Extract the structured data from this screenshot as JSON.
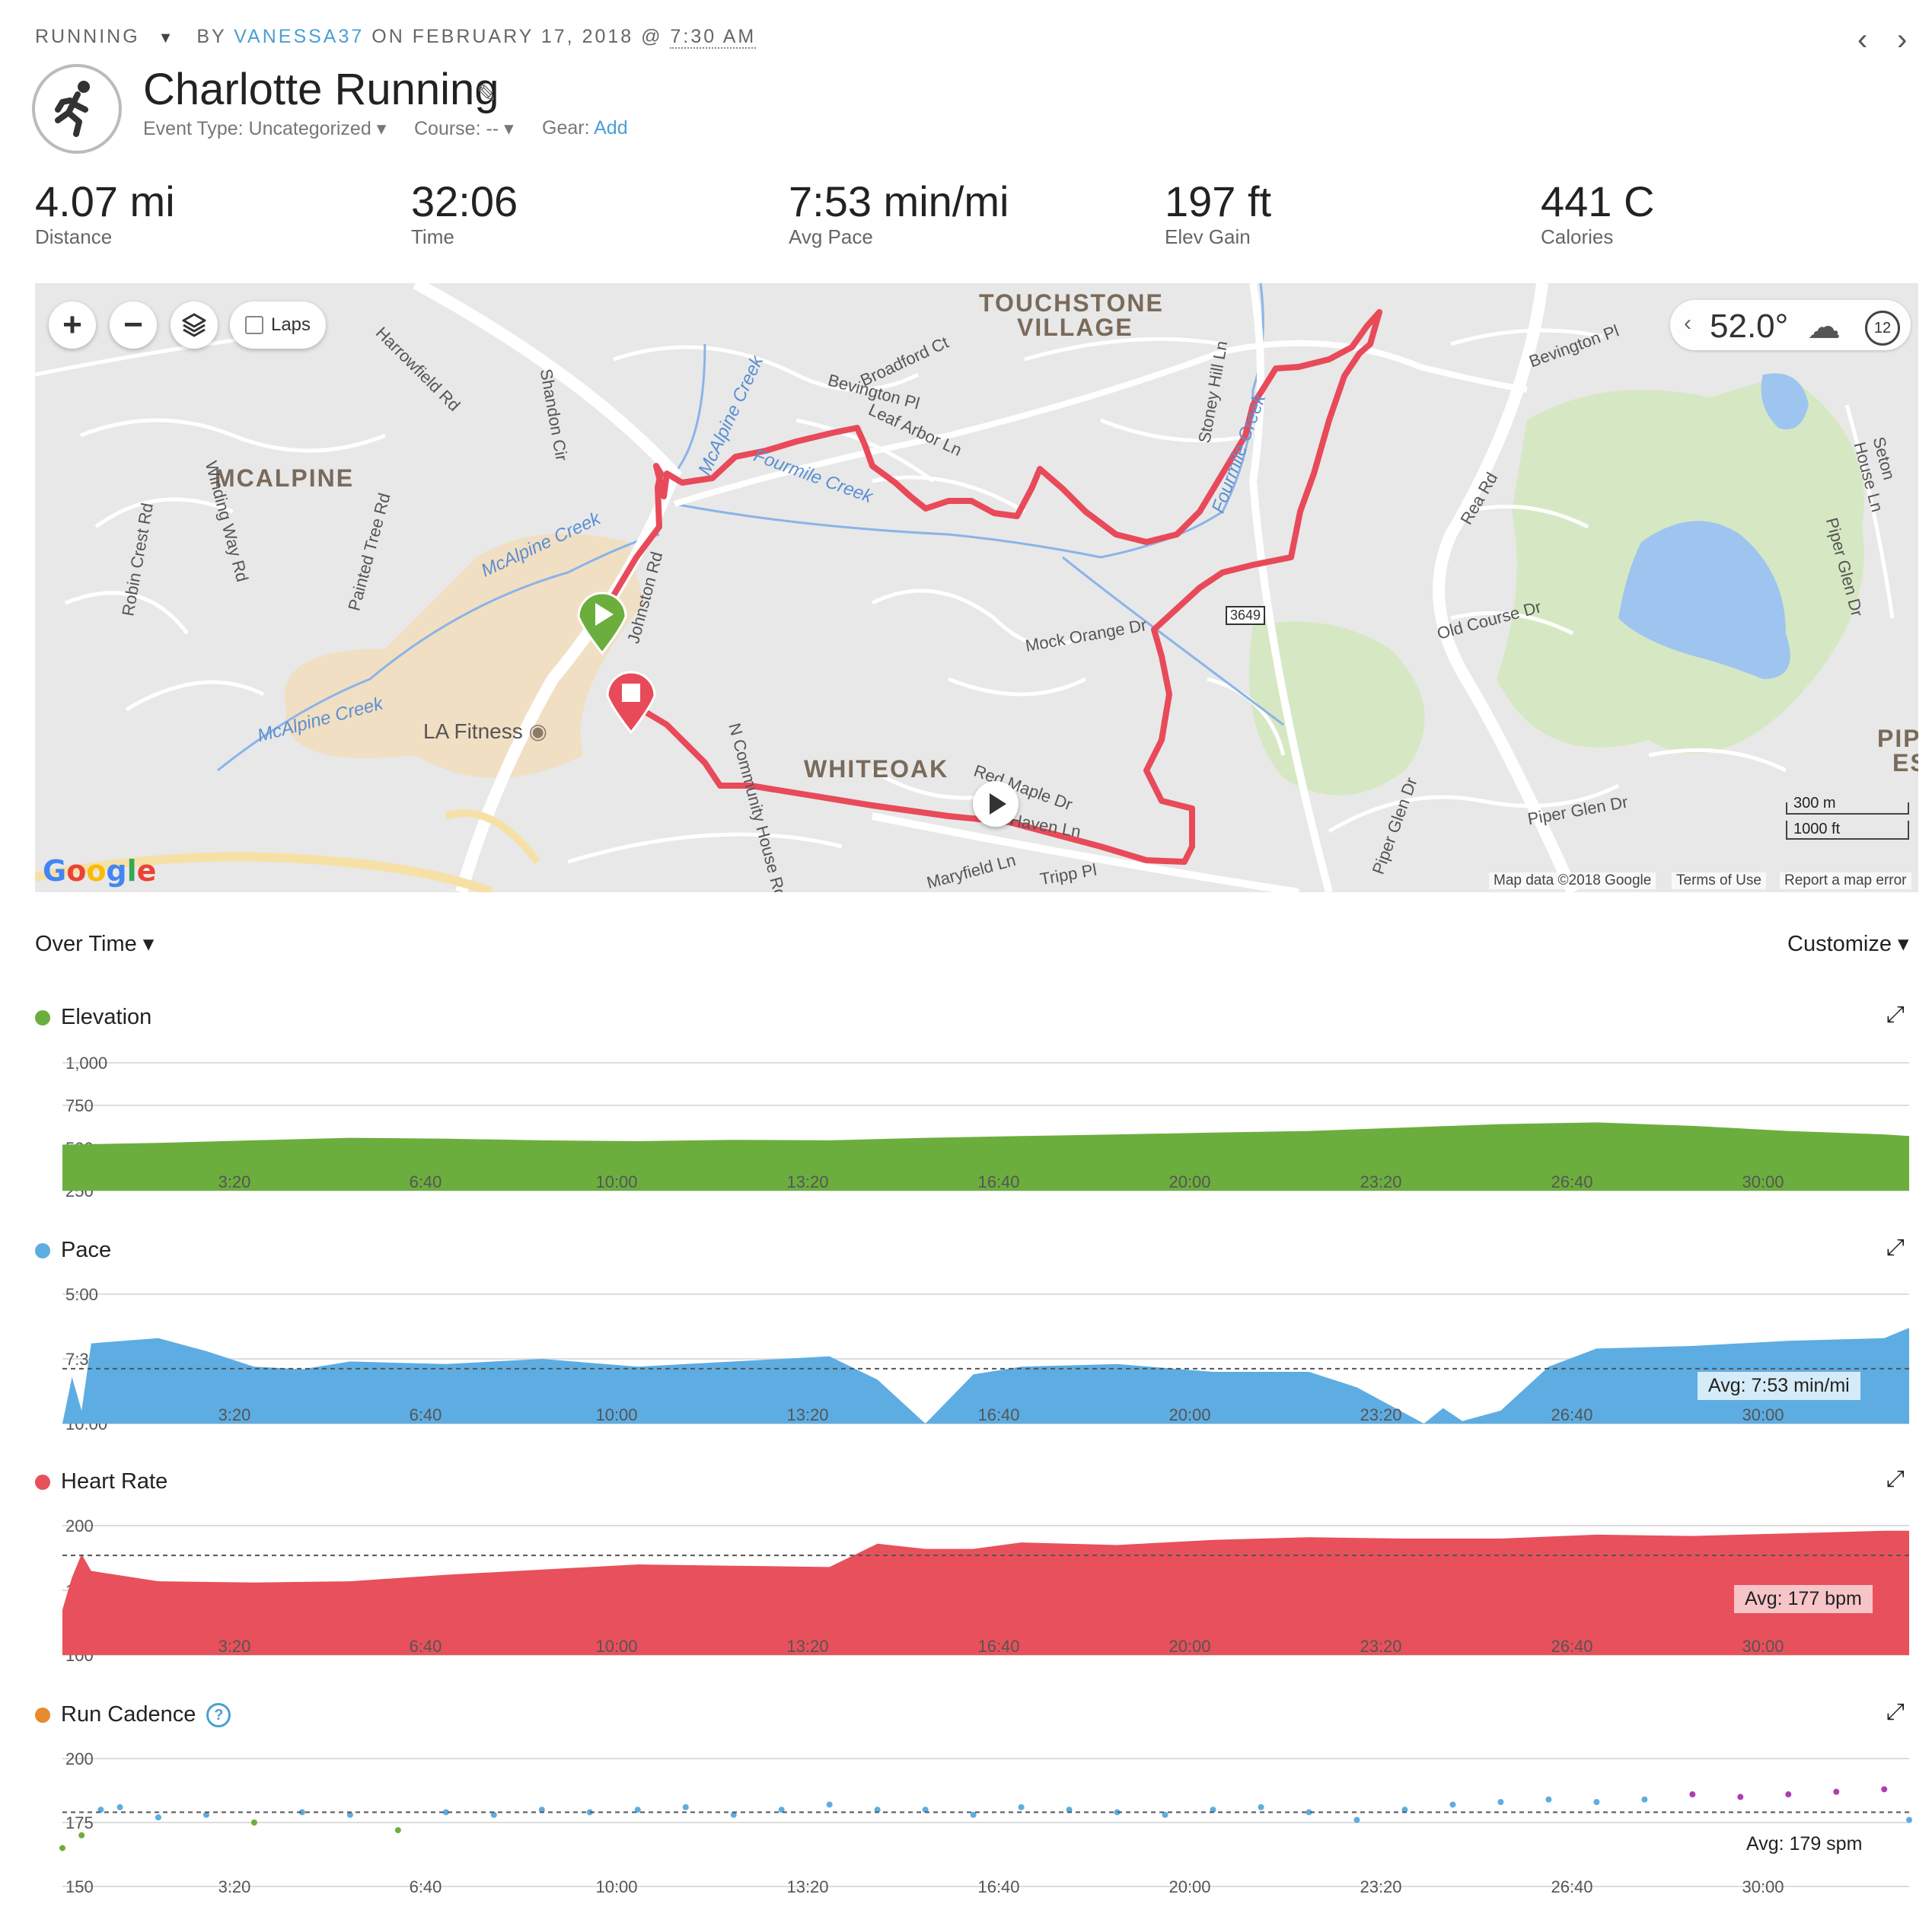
{
  "header": {
    "activity_type": "RUNNING",
    "by_label": "BY",
    "username": "VANESSA37",
    "on_label": "ON FEBRUARY 17, 2018 @",
    "time": "7:30 AM",
    "title": "Charlotte Running",
    "event_type_label": "Event Type:",
    "event_type_value": "Uncategorized",
    "course_label": "Course:",
    "course_value": "--",
    "gear_label": "Gear:",
    "gear_link": "Add",
    "prev_icon": "chevron-left-icon",
    "next_icon": "chevron-right-icon",
    "activity_icon": "runner-icon"
  },
  "stats": [
    {
      "value": "4.07 mi",
      "label": "Distance"
    },
    {
      "value": "32:06",
      "label": "Time"
    },
    {
      "value": "7:53 min/mi",
      "label": "Avg Pace"
    },
    {
      "value": "197 ft",
      "label": "Elev Gain"
    },
    {
      "value": "441 C",
      "label": "Calories"
    }
  ],
  "map": {
    "zoom_in": "+",
    "zoom_out": "−",
    "laps_label": "Laps",
    "temperature": "52.0°",
    "wind": "12",
    "weather_icon": "cloud-icon",
    "scale_m": "300 m",
    "scale_ft": "1000 ft",
    "attribution": "Map data ©2018 Google",
    "terms": "Terms of Use",
    "report": "Report a map error",
    "google": "Google",
    "route_color": "#e84a5a",
    "labels": {
      "touchstone1": "TOUCHSTONE",
      "touchstone2": "VILLAGE",
      "mcalpine": "MCALPINE",
      "whiteoak": "WHITEOAK",
      "la_fitness": "LA Fitness",
      "harrowfield": "Harrowfield Rd",
      "shandon": "Shandon Cir",
      "winding": "Winding Way Rd",
      "robin": "Robin Crest Rd",
      "painted": "Painted Tree Rd",
      "mcalpine_creek1": "McAlpine Creek",
      "mcalpine_creek2": "McAlpine Creek",
      "mcalpine_creek3": "McAlpine Creek",
      "fourmile1": "Fourmile Creek",
      "fourmile2": "Fourmile Creek",
      "johnston": "Johnston Rd",
      "broadford": "Broadford Ct",
      "bevington": "Bevington Pl",
      "bevington2": "Bevington Pl",
      "leaf": "Leaf Arbor Ln",
      "stoney": "Stoney Hill Ln",
      "mock": "Mock Orange Dr",
      "rea": "Rea Rd",
      "oldcourse": "Old Course Dr",
      "piper": "Piper Glen Dr",
      "piper2": "Piper Glen Dr",
      "piper3": "Piper Glen Dr",
      "seton": "Seton House Ln",
      "community": "N Community House Rd",
      "redmaple": "Red Maple Dr",
      "haven": "Haven Ln",
      "maryfield": "Maryfield Ln",
      "tripp": "Tripp Pl",
      "route3649": "3649",
      "pip": "PIP",
      "es": "ES"
    }
  },
  "over_time": {
    "label": "Over Time",
    "customize": "Customize"
  },
  "x_ticks": [
    "3:20",
    "6:40",
    "10:00",
    "13:20",
    "16:40",
    "20:00",
    "23:20",
    "26:40",
    "30:00"
  ],
  "chart_data": [
    {
      "type": "area",
      "title": "Elevation",
      "color": "#6cae3e",
      "yticks": [
        "1,000",
        "750",
        "500",
        "250"
      ],
      "ylim": [
        250,
        1000
      ],
      "x": [
        0,
        100,
        200,
        300,
        400,
        500,
        600,
        700,
        800,
        900,
        1000,
        1100,
        1200,
        1300,
        1400,
        1500,
        1600,
        1700,
        1800,
        1900,
        1926
      ],
      "values": [
        520,
        530,
        545,
        560,
        555,
        545,
        540,
        548,
        545,
        560,
        570,
        580,
        590,
        600,
        620,
        640,
        650,
        630,
        600,
        580,
        570
      ]
    },
    {
      "type": "area",
      "title": "Pace",
      "color": "#5dade2",
      "yticks": [
        "5:00",
        "7:30",
        "10:00"
      ],
      "ylim_min_per_mi": [
        5,
        10
      ],
      "avg_label": "Avg: 7:53 min/mi",
      "x": [
        0,
        10,
        20,
        30,
        100,
        150,
        200,
        250,
        300,
        400,
        500,
        600,
        700,
        800,
        850,
        900,
        950,
        1000,
        1100,
        1200,
        1300,
        1350,
        1400,
        1420,
        1440,
        1460,
        1500,
        1550,
        1600,
        1700,
        1800,
        1900,
        1926
      ],
      "values": [
        10,
        8.2,
        9.5,
        6.9,
        6.7,
        7.2,
        7.8,
        7.9,
        7.6,
        7.7,
        7.5,
        7.8,
        7.6,
        7.4,
        8.3,
        10,
        8.1,
        7.8,
        7.7,
        8.0,
        8.0,
        8.6,
        9.6,
        10,
        9.4,
        9.9,
        9.5,
        7.8,
        7.1,
        7.0,
        6.8,
        6.7,
        6.3
      ]
    },
    {
      "type": "area",
      "title": "Heart Rate",
      "color": "#e8505b",
      "yticks": [
        "200",
        "150",
        "100"
      ],
      "ylim": [
        100,
        200
      ],
      "avg_label": "Avg: 177 bpm",
      "x": [
        0,
        10,
        20,
        30,
        100,
        200,
        300,
        400,
        500,
        600,
        700,
        800,
        850,
        900,
        950,
        1000,
        1100,
        1200,
        1300,
        1400,
        1500,
        1600,
        1700,
        1800,
        1900,
        1926
      ],
      "values": [
        135,
        160,
        178,
        165,
        157,
        156,
        157,
        162,
        166,
        170,
        169,
        168,
        186,
        182,
        182,
        187,
        185,
        189,
        191,
        190,
        190,
        193,
        192,
        194,
        196,
        196
      ]
    },
    {
      "type": "scatter",
      "title": "Run Cadence",
      "color": "#5dade2",
      "yticks": [
        "200",
        "175",
        "150"
      ],
      "ylim": [
        150,
        200
      ],
      "avg_label": "Avg: 179 spm",
      "x": [
        0,
        20,
        40,
        60,
        100,
        150,
        200,
        250,
        300,
        350,
        400,
        450,
        500,
        550,
        600,
        650,
        700,
        750,
        800,
        850,
        900,
        950,
        1000,
        1050,
        1100,
        1150,
        1200,
        1250,
        1300,
        1350,
        1400,
        1450,
        1500,
        1550,
        1600,
        1650,
        1700,
        1750,
        1800,
        1850,
        1900,
        1926
      ],
      "values": [
        165,
        170,
        180,
        181,
        177,
        178,
        175,
        179,
        178,
        172,
        179,
        178,
        180,
        179,
        180,
        181,
        178,
        180,
        182,
        180,
        180,
        178,
        181,
        180,
        179,
        178,
        180,
        181,
        179,
        176,
        180,
        182,
        183,
        184,
        183,
        184,
        186,
        185,
        186,
        187,
        188,
        176
      ]
    }
  ]
}
